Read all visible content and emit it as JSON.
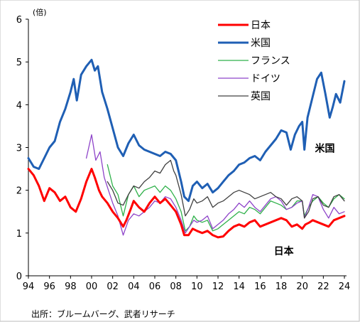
{
  "chart_data": {
    "type": "line",
    "unit_label": "(倍)",
    "source": "出所：ブルームバーグ、武者リサーチ",
    "annotations": [
      {
        "text": "米国",
        "x": 2021.2,
        "y": 2.9
      },
      {
        "text": "日本",
        "x": 2017.3,
        "y": 0.5
      }
    ],
    "xlim": [
      1994,
      2024.2
    ],
    "ylim": [
      0,
      6
    ],
    "x_ticks": [
      {
        "value": 1994,
        "label": "94"
      },
      {
        "value": 1996,
        "label": "96"
      },
      {
        "value": 1998,
        "label": "98"
      },
      {
        "value": 2000,
        "label": "00"
      },
      {
        "value": 2002,
        "label": "02"
      },
      {
        "value": 2004,
        "label": "04"
      },
      {
        "value": 2006,
        "label": "06"
      },
      {
        "value": 2008,
        "label": "08"
      },
      {
        "value": 2010,
        "label": "10"
      },
      {
        "value": 2012,
        "label": "12"
      },
      {
        "value": 2014,
        "label": "14"
      },
      {
        "value": 2016,
        "label": "16"
      },
      {
        "value": 2018,
        "label": "18"
      },
      {
        "value": 2020,
        "label": "20"
      },
      {
        "value": 2022,
        "label": "22"
      },
      {
        "value": 2024,
        "label": "24"
      }
    ],
    "y_ticks": [
      0,
      1,
      2,
      3,
      4,
      5,
      6
    ],
    "grid": false,
    "legend_position": "top-right",
    "series": [
      {
        "name": "日本",
        "color": "#ff0000",
        "stroke_style": "thick",
        "points": [
          [
            1994.0,
            2.5
          ],
          [
            1994.5,
            2.35
          ],
          [
            1995.0,
            2.1
          ],
          [
            1995.5,
            1.75
          ],
          [
            1996.0,
            2.05
          ],
          [
            1996.5,
            1.95
          ],
          [
            1997.0,
            1.75
          ],
          [
            1997.5,
            1.85
          ],
          [
            1998.0,
            1.6
          ],
          [
            1998.5,
            1.5
          ],
          [
            1999.0,
            1.8
          ],
          [
            1999.5,
            2.2
          ],
          [
            2000.0,
            2.5
          ],
          [
            2000.3,
            2.3
          ],
          [
            2000.7,
            2.0
          ],
          [
            2001.0,
            1.85
          ],
          [
            2001.5,
            1.7
          ],
          [
            2002.0,
            1.5
          ],
          [
            2002.5,
            1.35
          ],
          [
            2003.0,
            1.15
          ],
          [
            2003.3,
            1.3
          ],
          [
            2003.7,
            1.55
          ],
          [
            2004.0,
            1.75
          ],
          [
            2004.5,
            1.6
          ],
          [
            2005.0,
            1.5
          ],
          [
            2005.5,
            1.7
          ],
          [
            2006.0,
            1.85
          ],
          [
            2006.5,
            1.7
          ],
          [
            2007.0,
            1.8
          ],
          [
            2007.5,
            1.65
          ],
          [
            2008.0,
            1.5
          ],
          [
            2008.5,
            1.2
          ],
          [
            2008.8,
            0.95
          ],
          [
            2009.2,
            0.95
          ],
          [
            2009.6,
            1.1
          ],
          [
            2010.0,
            1.05
          ],
          [
            2010.5,
            1.0
          ],
          [
            2011.0,
            1.05
          ],
          [
            2011.5,
            0.95
          ],
          [
            2012.0,
            0.9
          ],
          [
            2012.5,
            0.92
          ],
          [
            2013.0,
            1.05
          ],
          [
            2013.5,
            1.15
          ],
          [
            2014.0,
            1.2
          ],
          [
            2014.5,
            1.15
          ],
          [
            2015.0,
            1.25
          ],
          [
            2015.5,
            1.3
          ],
          [
            2016.0,
            1.15
          ],
          [
            2016.5,
            1.2
          ],
          [
            2017.0,
            1.25
          ],
          [
            2017.5,
            1.3
          ],
          [
            2018.0,
            1.35
          ],
          [
            2018.5,
            1.3
          ],
          [
            2019.0,
            1.15
          ],
          [
            2019.5,
            1.2
          ],
          [
            2020.0,
            1.1
          ],
          [
            2020.3,
            1.2
          ],
          [
            2020.7,
            1.25
          ],
          [
            2021.0,
            1.3
          ],
          [
            2021.5,
            1.25
          ],
          [
            2022.0,
            1.2
          ],
          [
            2022.5,
            1.15
          ],
          [
            2023.0,
            1.3
          ],
          [
            2023.5,
            1.35
          ],
          [
            2024.0,
            1.4
          ]
        ]
      },
      {
        "name": "米国",
        "color": "#1f5fb4",
        "stroke_style": "thick",
        "points": [
          [
            1994.0,
            2.75
          ],
          [
            1994.5,
            2.55
          ],
          [
            1995.0,
            2.5
          ],
          [
            1995.5,
            2.75
          ],
          [
            1996.0,
            3.0
          ],
          [
            1996.5,
            3.15
          ],
          [
            1997.0,
            3.6
          ],
          [
            1997.5,
            3.9
          ],
          [
            1998.0,
            4.3
          ],
          [
            1998.3,
            4.6
          ],
          [
            1998.6,
            4.1
          ],
          [
            1999.0,
            4.7
          ],
          [
            1999.5,
            4.9
          ],
          [
            2000.0,
            5.05
          ],
          [
            2000.3,
            4.8
          ],
          [
            2000.6,
            4.9
          ],
          [
            2001.0,
            4.3
          ],
          [
            2001.5,
            3.9
          ],
          [
            2002.0,
            3.45
          ],
          [
            2002.5,
            3.0
          ],
          [
            2003.0,
            2.8
          ],
          [
            2003.5,
            3.1
          ],
          [
            2004.0,
            3.3
          ],
          [
            2004.5,
            3.05
          ],
          [
            2005.0,
            2.95
          ],
          [
            2005.5,
            2.9
          ],
          [
            2006.0,
            2.85
          ],
          [
            2006.5,
            2.8
          ],
          [
            2007.0,
            2.9
          ],
          [
            2007.5,
            2.85
          ],
          [
            2008.0,
            2.7
          ],
          [
            2008.5,
            2.2
          ],
          [
            2008.8,
            1.85
          ],
          [
            2009.2,
            1.75
          ],
          [
            2009.6,
            2.1
          ],
          [
            2010.0,
            2.2
          ],
          [
            2010.5,
            2.05
          ],
          [
            2011.0,
            2.15
          ],
          [
            2011.5,
            1.95
          ],
          [
            2012.0,
            2.05
          ],
          [
            2012.5,
            2.2
          ],
          [
            2013.0,
            2.35
          ],
          [
            2013.5,
            2.45
          ],
          [
            2014.0,
            2.6
          ],
          [
            2014.5,
            2.65
          ],
          [
            2015.0,
            2.75
          ],
          [
            2015.5,
            2.8
          ],
          [
            2016.0,
            2.7
          ],
          [
            2016.5,
            2.9
          ],
          [
            2017.0,
            3.05
          ],
          [
            2017.5,
            3.2
          ],
          [
            2018.0,
            3.4
          ],
          [
            2018.5,
            3.35
          ],
          [
            2018.9,
            2.95
          ],
          [
            2019.3,
            3.3
          ],
          [
            2019.7,
            3.5
          ],
          [
            2020.0,
            3.6
          ],
          [
            2020.2,
            2.95
          ],
          [
            2020.5,
            3.7
          ],
          [
            2021.0,
            4.2
          ],
          [
            2021.4,
            4.6
          ],
          [
            2021.8,
            4.75
          ],
          [
            2022.2,
            4.25
          ],
          [
            2022.6,
            3.7
          ],
          [
            2022.9,
            3.95
          ],
          [
            2023.2,
            4.25
          ],
          [
            2023.6,
            4.05
          ],
          [
            2024.0,
            4.55
          ]
        ]
      },
      {
        "name": "フランス",
        "color": "#2fb14a",
        "stroke_style": "thin",
        "points": [
          [
            2001.5,
            2.6
          ],
          [
            2002.0,
            2.1
          ],
          [
            2002.5,
            1.9
          ],
          [
            2003.0,
            1.4
          ],
          [
            2003.5,
            1.9
          ],
          [
            2004.0,
            2.1
          ],
          [
            2004.5,
            1.85
          ],
          [
            2005.0,
            2.0
          ],
          [
            2005.5,
            2.05
          ],
          [
            2006.0,
            2.1
          ],
          [
            2006.5,
            1.95
          ],
          [
            2007.0,
            2.1
          ],
          [
            2007.5,
            2.0
          ],
          [
            2008.0,
            1.8
          ],
          [
            2008.5,
            1.5
          ],
          [
            2008.9,
            1.05
          ],
          [
            2009.3,
            1.15
          ],
          [
            2009.7,
            1.4
          ],
          [
            2010.0,
            1.3
          ],
          [
            2010.5,
            1.25
          ],
          [
            2011.0,
            1.3
          ],
          [
            2011.5,
            1.05
          ],
          [
            2012.0,
            1.1
          ],
          [
            2012.5,
            1.2
          ],
          [
            2013.0,
            1.3
          ],
          [
            2013.5,
            1.4
          ],
          [
            2014.0,
            1.5
          ],
          [
            2014.5,
            1.45
          ],
          [
            2015.0,
            1.6
          ],
          [
            2015.5,
            1.55
          ],
          [
            2016.0,
            1.45
          ],
          [
            2016.5,
            1.6
          ],
          [
            2017.0,
            1.75
          ],
          [
            2017.5,
            1.7
          ],
          [
            2018.0,
            1.65
          ],
          [
            2018.5,
            1.55
          ],
          [
            2019.0,
            1.6
          ],
          [
            2019.5,
            1.75
          ],
          [
            2020.0,
            1.75
          ],
          [
            2020.2,
            1.4
          ],
          [
            2020.6,
            1.6
          ],
          [
            2021.0,
            1.75
          ],
          [
            2021.5,
            1.85
          ],
          [
            2022.0,
            1.7
          ],
          [
            2022.5,
            1.6
          ],
          [
            2023.0,
            1.8
          ],
          [
            2023.5,
            1.9
          ],
          [
            2024.0,
            1.8
          ]
        ]
      },
      {
        "name": "ドイツ",
        "color": "#8e44c9",
        "stroke_style": "thin",
        "points": [
          [
            1999.5,
            2.75
          ],
          [
            2000.0,
            3.3
          ],
          [
            2000.4,
            2.7
          ],
          [
            2000.8,
            2.9
          ],
          [
            2001.2,
            2.3
          ],
          [
            2001.6,
            2.0
          ],
          [
            2002.0,
            1.7
          ],
          [
            2002.5,
            1.4
          ],
          [
            2003.0,
            0.95
          ],
          [
            2003.5,
            1.3
          ],
          [
            2004.0,
            1.45
          ],
          [
            2004.5,
            1.4
          ],
          [
            2005.0,
            1.5
          ],
          [
            2005.5,
            1.6
          ],
          [
            2006.0,
            1.75
          ],
          [
            2006.5,
            1.7
          ],
          [
            2007.0,
            1.85
          ],
          [
            2007.5,
            1.8
          ],
          [
            2008.0,
            1.6
          ],
          [
            2008.5,
            1.3
          ],
          [
            2008.9,
            1.0
          ],
          [
            2009.3,
            1.15
          ],
          [
            2009.7,
            1.3
          ],
          [
            2010.0,
            1.25
          ],
          [
            2010.5,
            1.3
          ],
          [
            2011.0,
            1.4
          ],
          [
            2011.5,
            1.1
          ],
          [
            2012.0,
            1.2
          ],
          [
            2012.5,
            1.3
          ],
          [
            2013.0,
            1.45
          ],
          [
            2013.5,
            1.55
          ],
          [
            2014.0,
            1.7
          ],
          [
            2014.5,
            1.6
          ],
          [
            2015.0,
            1.75
          ],
          [
            2015.5,
            1.6
          ],
          [
            2016.0,
            1.5
          ],
          [
            2016.5,
            1.65
          ],
          [
            2017.0,
            1.8
          ],
          [
            2017.5,
            1.85
          ],
          [
            2018.0,
            1.75
          ],
          [
            2018.5,
            1.55
          ],
          [
            2019.0,
            1.6
          ],
          [
            2019.5,
            1.7
          ],
          [
            2020.0,
            1.75
          ],
          [
            2020.2,
            1.35
          ],
          [
            2020.6,
            1.6
          ],
          [
            2021.0,
            1.9
          ],
          [
            2021.5,
            1.85
          ],
          [
            2022.0,
            1.55
          ],
          [
            2022.5,
            1.35
          ],
          [
            2023.0,
            1.6
          ],
          [
            2023.5,
            1.45
          ],
          [
            2024.0,
            1.5
          ]
        ]
      },
      {
        "name": "英国",
        "color": "#404040",
        "stroke_style": "thin",
        "points": [
          [
            2001.5,
            2.2
          ],
          [
            2002.0,
            2.0
          ],
          [
            2002.5,
            1.7
          ],
          [
            2003.0,
            1.65
          ],
          [
            2003.5,
            1.9
          ],
          [
            2004.0,
            2.1
          ],
          [
            2004.5,
            2.05
          ],
          [
            2005.0,
            2.2
          ],
          [
            2005.5,
            2.3
          ],
          [
            2006.0,
            2.45
          ],
          [
            2006.5,
            2.4
          ],
          [
            2007.0,
            2.6
          ],
          [
            2007.5,
            2.7
          ],
          [
            2007.8,
            2.45
          ],
          [
            2008.0,
            2.35
          ],
          [
            2008.5,
            1.9
          ],
          [
            2008.9,
            1.4
          ],
          [
            2009.3,
            1.55
          ],
          [
            2009.7,
            1.8
          ],
          [
            2010.0,
            1.7
          ],
          [
            2010.5,
            1.75
          ],
          [
            2011.0,
            1.85
          ],
          [
            2011.5,
            1.6
          ],
          [
            2012.0,
            1.7
          ],
          [
            2012.5,
            1.75
          ],
          [
            2013.0,
            1.85
          ],
          [
            2013.5,
            1.95
          ],
          [
            2014.0,
            2.0
          ],
          [
            2014.5,
            1.95
          ],
          [
            2015.0,
            1.9
          ],
          [
            2015.5,
            1.8
          ],
          [
            2016.0,
            1.85
          ],
          [
            2016.5,
            1.9
          ],
          [
            2017.0,
            1.95
          ],
          [
            2017.5,
            1.85
          ],
          [
            2018.0,
            1.8
          ],
          [
            2018.5,
            1.65
          ],
          [
            2019.0,
            1.8
          ],
          [
            2019.5,
            1.85
          ],
          [
            2020.0,
            1.75
          ],
          [
            2020.2,
            1.35
          ],
          [
            2020.6,
            1.5
          ],
          [
            2021.0,
            1.8
          ],
          [
            2021.5,
            1.85
          ],
          [
            2022.0,
            1.65
          ],
          [
            2022.5,
            1.6
          ],
          [
            2023.0,
            1.85
          ],
          [
            2023.5,
            1.9
          ],
          [
            2024.0,
            1.75
          ]
        ]
      }
    ]
  }
}
